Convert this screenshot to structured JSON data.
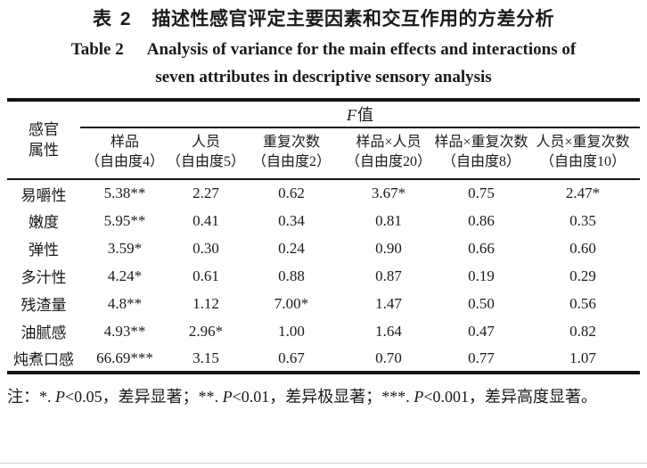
{
  "titles": {
    "zh_label": "表 2",
    "zh_text": "描述性感官评定主要因素和交互作用的方差分析",
    "en_label": "Table 2",
    "en_line1": "Analysis of variance for the main effects and interactions of",
    "en_line2": "seven attributes in descriptive sensory analysis"
  },
  "table": {
    "row_header_line1": "感官",
    "row_header_line2": "属性",
    "f_header": {
      "italic": "F",
      "rest": "值"
    },
    "columns": [
      {
        "l1": "样品",
        "l2": "（自由度4）"
      },
      {
        "l1": "人员",
        "l2": "（自由度5）"
      },
      {
        "l1": "重复次数",
        "l2": "（自由度2）"
      },
      {
        "l1": "样品×人员",
        "l2": "（自由度20）"
      },
      {
        "l1": "样品×重复次数",
        "l2": "（自由度8）"
      },
      {
        "l1": "人员×重复次数",
        "l2": "（自由度10）"
      }
    ],
    "rows": [
      {
        "label": "易嚼性",
        "values": [
          "5.38**",
          "2.27",
          "0.62",
          "3.67*",
          "0.75",
          "2.47*"
        ]
      },
      {
        "label": "嫩度",
        "values": [
          "5.95**",
          "0.41",
          "0.34",
          "0.81",
          "0.86",
          "0.35"
        ]
      },
      {
        "label": "弹性",
        "values": [
          "3.59*",
          "0.30",
          "0.24",
          "0.90",
          "0.66",
          "0.60"
        ]
      },
      {
        "label": "多汁性",
        "values": [
          "4.24*",
          "0.61",
          "0.88",
          "0.87",
          "0.19",
          "0.29"
        ]
      },
      {
        "label": "残渣量",
        "values": [
          "4.8**",
          "1.12",
          "7.00*",
          "1.47",
          "0.50",
          "0.56"
        ]
      },
      {
        "label": "油腻感",
        "values": [
          "4.93**",
          "2.96*",
          "1.00",
          "1.64",
          "0.47",
          "0.82"
        ]
      },
      {
        "label": "炖煮口感",
        "values": [
          "66.69***",
          "3.15",
          "0.67",
          "0.70",
          "0.77",
          "1.07"
        ]
      }
    ]
  },
  "footnote": {
    "parts": [
      {
        "text": "注：*. ",
        "italic": false
      },
      {
        "text": "P",
        "italic": true
      },
      {
        "text": "<0.05，差异显著；**. ",
        "italic": false
      },
      {
        "text": "P",
        "italic": true
      },
      {
        "text": "<0.01，差异极显著；***. ",
        "italic": false
      },
      {
        "text": "P",
        "italic": true
      },
      {
        "text": "<0.001，差异高度显著。",
        "italic": false
      }
    ]
  },
  "colors": {
    "text": "#1a1a1a",
    "rule": "#141414",
    "background": "#ffffff"
  },
  "chart_data": {
    "type": "table",
    "title_zh": "表 2 描述性感官评定主要因素和交互作用的方差分析",
    "title_en": "Table 2 Analysis of variance for the main effects and interactions of seven attributes in descriptive sensory analysis",
    "group_header": "F值",
    "columns": [
      "感官属性",
      "样品（自由度4）",
      "人员（自由度5）",
      "重复次数（自由度2）",
      "样品×人员（自由度20）",
      "样品×重复次数（自由度8）",
      "人员×重复次数（自由度10）"
    ],
    "rows": [
      [
        "易嚼性",
        "5.38**",
        "2.27",
        "0.62",
        "3.67*",
        "0.75",
        "2.47*"
      ],
      [
        "嫩度",
        "5.95**",
        "0.41",
        "0.34",
        "0.81",
        "0.86",
        "0.35"
      ],
      [
        "弹性",
        "3.59*",
        "0.30",
        "0.24",
        "0.90",
        "0.66",
        "0.60"
      ],
      [
        "多汁性",
        "4.24*",
        "0.61",
        "0.88",
        "0.87",
        "0.19",
        "0.29"
      ],
      [
        "残渣量",
        "4.8**",
        "1.12",
        "7.00*",
        "1.47",
        "0.50",
        "0.56"
      ],
      [
        "油腻感",
        "4.93**",
        "2.96*",
        "1.00",
        "1.64",
        "0.47",
        "0.82"
      ],
      [
        "炖煮口感",
        "66.69***",
        "3.15",
        "0.67",
        "0.70",
        "0.77",
        "1.07"
      ]
    ],
    "note": "注：*. P<0.05，差异显著；**. P<0.01，差异极显著；***. P<0.001，差异高度显著。"
  }
}
